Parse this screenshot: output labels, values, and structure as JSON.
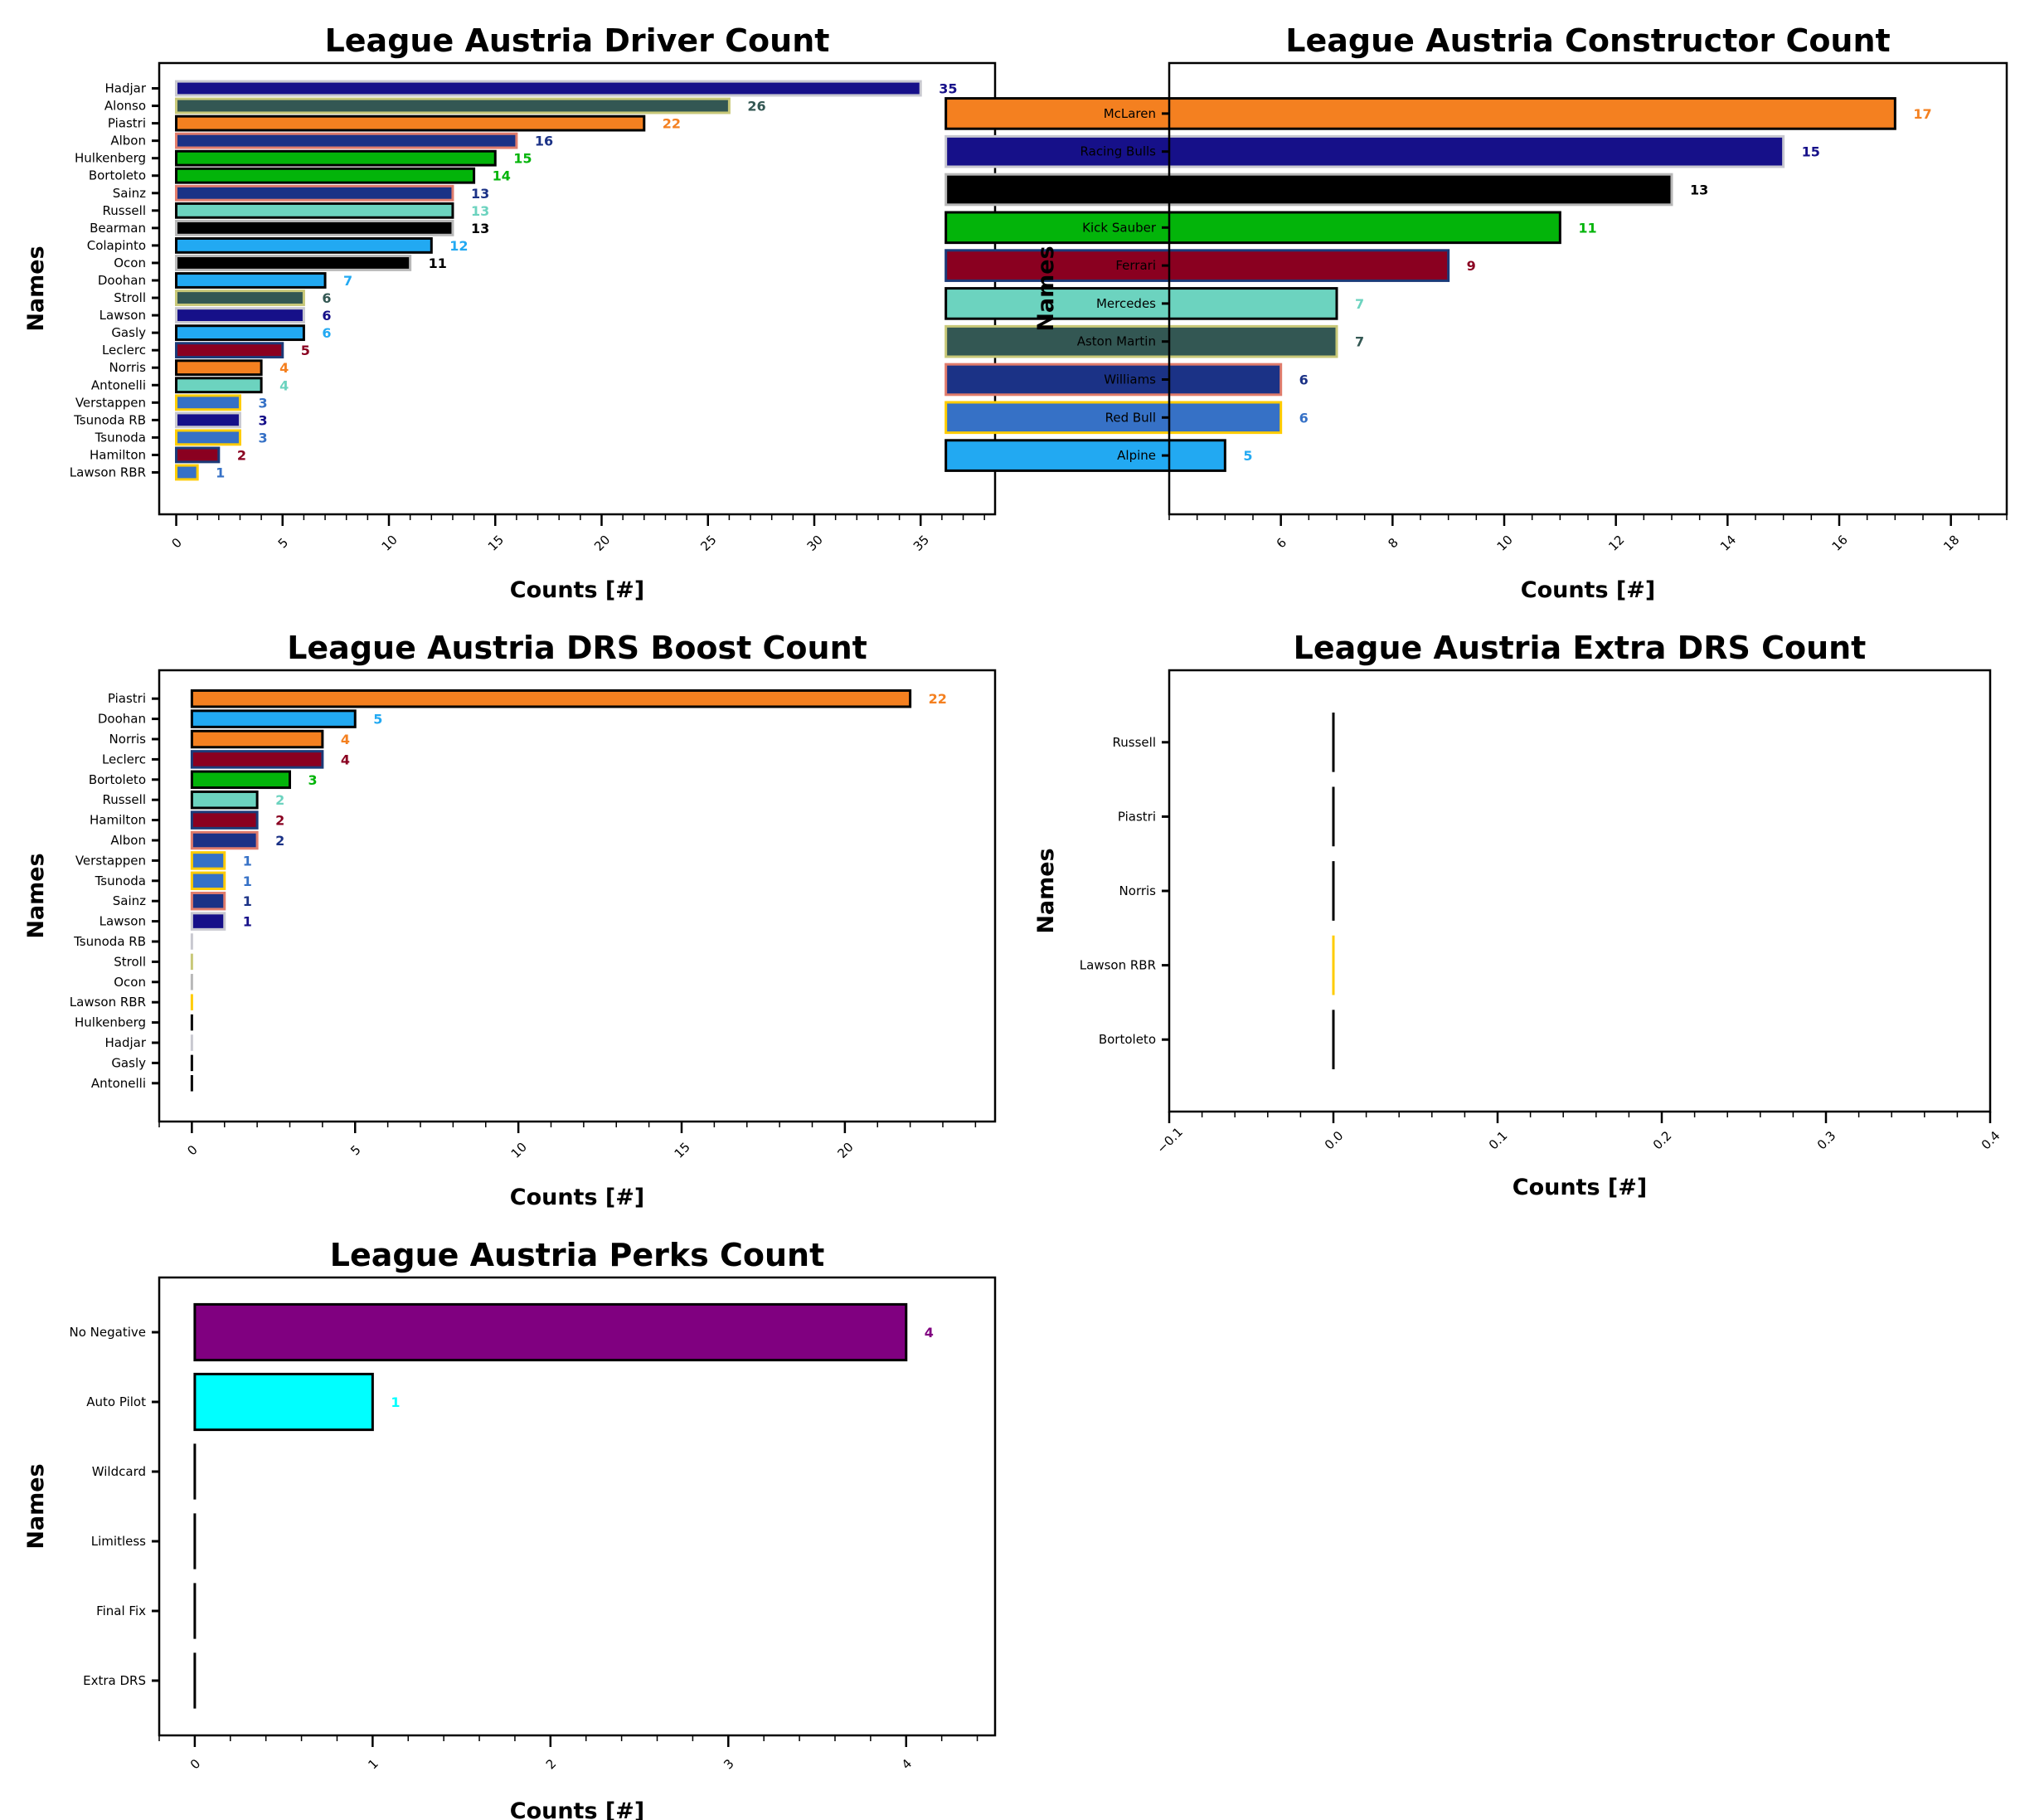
{
  "chart_data": [
    {
      "id": "driver",
      "type": "bar",
      "orientation": "horizontal",
      "title": "League Austria Driver Count",
      "xlabel": "Counts [#]",
      "ylabel": "Names",
      "xlim": [
        -0.8,
        38.5
      ],
      "xticks": [
        0,
        5,
        10,
        15,
        20,
        25,
        30,
        35
      ],
      "xtick_labels": [
        "0",
        "5",
        "10",
        "15",
        "20",
        "25",
        "30",
        "35"
      ],
      "minor_step": 1,
      "show_value_labels": true,
      "bars": [
        {
          "label": "Hadjar",
          "value": 35,
          "fill": "#161089",
          "edge": "#c8c8d0"
        },
        {
          "label": "Alonso",
          "value": 26,
          "fill": "#335753",
          "edge": "#c8c878"
        },
        {
          "label": "Piastri",
          "value": 22,
          "fill": "#f48020",
          "edge": "#000000"
        },
        {
          "label": "Albon",
          "value": 16,
          "fill": "#1b3286",
          "edge": "#e07c6c"
        },
        {
          "label": "Hulkenberg",
          "value": 15,
          "fill": "#03b40a",
          "edge": "#000000"
        },
        {
          "label": "Bortoleto",
          "value": 14,
          "fill": "#03b40a",
          "edge": "#000000"
        },
        {
          "label": "Sainz",
          "value": 13,
          "fill": "#1b3286",
          "edge": "#e07c6c"
        },
        {
          "label": "Russell",
          "value": 13,
          "fill": "#6cd3bf",
          "edge": "#000000"
        },
        {
          "label": "Bearman",
          "value": 13,
          "fill": "#000000",
          "edge": "#b8b8b8"
        },
        {
          "label": "Colapinto",
          "value": 12,
          "fill": "#22a9f2",
          "edge": "#000000"
        },
        {
          "label": "Ocon",
          "value": 11,
          "fill": "#000000",
          "edge": "#b8b8b8"
        },
        {
          "label": "Doohan",
          "value": 7,
          "fill": "#22a9f2",
          "edge": "#000000"
        },
        {
          "label": "Stroll",
          "value": 6,
          "fill": "#335753",
          "edge": "#c8c878"
        },
        {
          "label": "Lawson",
          "value": 6,
          "fill": "#161089",
          "edge": "#c8c8d0"
        },
        {
          "label": "Gasly",
          "value": 6,
          "fill": "#22a9f2",
          "edge": "#000000"
        },
        {
          "label": "Leclerc",
          "value": 5,
          "fill": "#8a0020",
          "edge": "#1b3a78"
        },
        {
          "label": "Norris",
          "value": 4,
          "fill": "#f48020",
          "edge": "#000000"
        },
        {
          "label": "Antonelli",
          "value": 4,
          "fill": "#6cd3bf",
          "edge": "#000000"
        },
        {
          "label": "Verstappen",
          "value": 3,
          "fill": "#3671c6",
          "edge": "#ffcc00"
        },
        {
          "label": "Tsunoda RB",
          "value": 3,
          "fill": "#161089",
          "edge": "#c8c8d0"
        },
        {
          "label": "Tsunoda",
          "value": 3,
          "fill": "#3671c6",
          "edge": "#ffcc00"
        },
        {
          "label": "Hamilton",
          "value": 2,
          "fill": "#8a0020",
          "edge": "#1b3a78"
        },
        {
          "label": "Lawson RBR",
          "value": 1,
          "fill": "#3671c6",
          "edge": "#ffcc00"
        }
      ]
    },
    {
      "id": "constructor",
      "type": "bar",
      "orientation": "horizontal",
      "title": "League Austria Constructor Count",
      "xlabel": "Counts [#]",
      "ylabel": "Names",
      "xlim": [
        4.0,
        19.0
      ],
      "xticks": [
        6,
        8,
        10,
        12,
        14,
        16,
        18
      ],
      "xtick_labels": [
        "6",
        "8",
        "10",
        "12",
        "14",
        "16",
        "18"
      ],
      "minor_step": 0.5,
      "show_value_labels": true,
      "bars": [
        {
          "label": "McLaren",
          "value": 17,
          "fill": "#f48020",
          "edge": "#000000"
        },
        {
          "label": "Racing Bulls",
          "value": 15,
          "fill": "#161089",
          "edge": "#c8c8d0"
        },
        {
          "label": "Haas",
          "value": 13,
          "fill": "#000000",
          "edge": "#b8b8b8"
        },
        {
          "label": "Kick Sauber",
          "value": 11,
          "fill": "#03b40a",
          "edge": "#000000"
        },
        {
          "label": "Ferrari",
          "value": 9,
          "fill": "#8a0020",
          "edge": "#1b3a78"
        },
        {
          "label": "Mercedes",
          "value": 7,
          "fill": "#6cd3bf",
          "edge": "#000000"
        },
        {
          "label": "Aston Martin",
          "value": 7,
          "fill": "#335753",
          "edge": "#c8c878"
        },
        {
          "label": "Williams",
          "value": 6,
          "fill": "#1b3286",
          "edge": "#e07c6c"
        },
        {
          "label": "Red Bull",
          "value": 6,
          "fill": "#3671c6",
          "edge": "#ffcc00"
        },
        {
          "label": "Alpine",
          "value": 5,
          "fill": "#22a9f2",
          "edge": "#000000"
        }
      ]
    },
    {
      "id": "drs",
      "type": "bar",
      "orientation": "horizontal",
      "title": "League Austria DRS Boost Count",
      "xlabel": "Counts [#]",
      "ylabel": "Names",
      "xlim": [
        -1.0,
        24.6
      ],
      "xticks": [
        0,
        5,
        10,
        15,
        20
      ],
      "xtick_labels": [
        "0",
        "5",
        "10",
        "15",
        "20"
      ],
      "minor_step": 1,
      "show_value_labels": true,
      "bars": [
        {
          "label": "Piastri",
          "value": 22,
          "fill": "#f48020",
          "edge": "#000000"
        },
        {
          "label": "Doohan",
          "value": 5,
          "fill": "#22a9f2",
          "edge": "#000000"
        },
        {
          "label": "Norris",
          "value": 4,
          "fill": "#f48020",
          "edge": "#000000"
        },
        {
          "label": "Leclerc",
          "value": 4,
          "fill": "#8a0020",
          "edge": "#1b3a78"
        },
        {
          "label": "Bortoleto",
          "value": 3,
          "fill": "#03b40a",
          "edge": "#000000"
        },
        {
          "label": "Russell",
          "value": 2,
          "fill": "#6cd3bf",
          "edge": "#000000"
        },
        {
          "label": "Hamilton",
          "value": 2,
          "fill": "#8a0020",
          "edge": "#1b3a78"
        },
        {
          "label": "Albon",
          "value": 2,
          "fill": "#1b3286",
          "edge": "#e07c6c"
        },
        {
          "label": "Verstappen",
          "value": 1,
          "fill": "#3671c6",
          "edge": "#ffcc00"
        },
        {
          "label": "Tsunoda",
          "value": 1,
          "fill": "#3671c6",
          "edge": "#ffcc00"
        },
        {
          "label": "Sainz",
          "value": 1,
          "fill": "#1b3286",
          "edge": "#e07c6c"
        },
        {
          "label": "Lawson",
          "value": 1,
          "fill": "#161089",
          "edge": "#c8c8d0"
        },
        {
          "label": "Tsunoda RB",
          "value": 0,
          "fill": "#161089",
          "edge": "#c8c8d0"
        },
        {
          "label": "Stroll",
          "value": 0,
          "fill": "#335753",
          "edge": "#c8c878"
        },
        {
          "label": "Ocon",
          "value": 0,
          "fill": "#000000",
          "edge": "#b8b8b8"
        },
        {
          "label": "Lawson RBR",
          "value": 0,
          "fill": "#3671c6",
          "edge": "#ffcc00"
        },
        {
          "label": "Hulkenberg",
          "value": 0,
          "fill": "#03b40a",
          "edge": "#000000"
        },
        {
          "label": "Hadjar",
          "value": 0,
          "fill": "#161089",
          "edge": "#c8c8d0"
        },
        {
          "label": "Gasly",
          "value": 0,
          "fill": "#22a9f2",
          "edge": "#000000"
        },
        {
          "label": "Antonelli",
          "value": 0,
          "fill": "#6cd3bf",
          "edge": "#000000"
        }
      ]
    },
    {
      "id": "extra-drs",
      "type": "bar",
      "orientation": "horizontal",
      "title": "League Austria Extra DRS Count",
      "xlabel": "Counts [#]",
      "ylabel": "Names",
      "xlim": [
        -0.1,
        0.4
      ],
      "xticks": [
        -0.1,
        0.0,
        0.1,
        0.2,
        0.3,
        0.4
      ],
      "xtick_labels": [
        "−0.1",
        "0.0",
        "0.1",
        "0.2",
        "0.3",
        "0.4"
      ],
      "minor_step": 0.02,
      "show_value_labels": false,
      "bars": [
        {
          "label": "Russell",
          "value": 0,
          "fill": "#6cd3bf",
          "edge": "#000000"
        },
        {
          "label": "Piastri",
          "value": 0,
          "fill": "#f48020",
          "edge": "#000000"
        },
        {
          "label": "Norris",
          "value": 0,
          "fill": "#f48020",
          "edge": "#000000"
        },
        {
          "label": "Lawson RBR",
          "value": 0,
          "fill": "#3671c6",
          "edge": "#ffcc00"
        },
        {
          "label": "Bortoleto",
          "value": 0,
          "fill": "#03b40a",
          "edge": "#000000"
        }
      ]
    },
    {
      "id": "perks",
      "type": "bar",
      "orientation": "horizontal",
      "title": "League Austria Perks Count",
      "xlabel": "Counts [#]",
      "ylabel": "Names",
      "xlim": [
        -0.2,
        4.5
      ],
      "xticks": [
        0,
        1,
        2,
        3,
        4
      ],
      "xtick_labels": [
        "0",
        "1",
        "2",
        "3",
        "4"
      ],
      "minor_step": 0.2,
      "show_value_labels": true,
      "bars": [
        {
          "label": "No Negative",
          "value": 4,
          "fill": "#800080",
          "edge": "#000000"
        },
        {
          "label": "Auto Pilot",
          "value": 1,
          "fill": "#00ffff",
          "edge": "#000000"
        },
        {
          "label": "Wildcard",
          "value": 0,
          "fill": "#ffffff",
          "edge": "#000000"
        },
        {
          "label": "Limitless",
          "value": 0,
          "fill": "#ffffff",
          "edge": "#000000"
        },
        {
          "label": "Final Fix",
          "value": 0,
          "fill": "#ffffff",
          "edge": "#000000"
        },
        {
          "label": "Extra DRS",
          "value": 0,
          "fill": "#ffffff",
          "edge": "#000000"
        }
      ]
    }
  ]
}
